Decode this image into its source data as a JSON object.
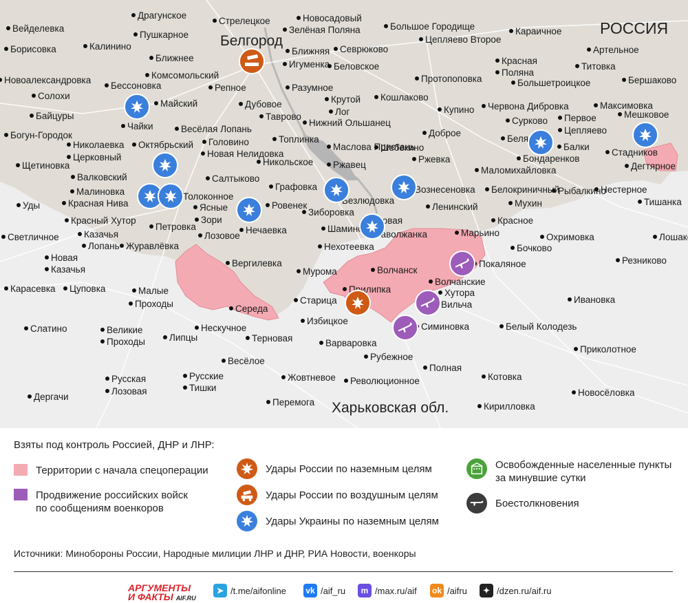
{
  "map": {
    "region_russia": "РОССИЯ",
    "region_kharkiv": "Харьковская обл.",
    "city_main": "Белгород",
    "towns": [
      {
        "n": "Драгунское"
      },
      {
        "n": "Стрелецкое"
      },
      {
        "n": "Новосадовый"
      },
      {
        "n": "Вейделевка"
      },
      {
        "n": "Пушкарное"
      },
      {
        "n": "Зелёная Поляна"
      },
      {
        "n": "Большое Городище"
      },
      {
        "n": "Караичное"
      },
      {
        "n": "Борисовка"
      },
      {
        "n": "Калинино"
      },
      {
        "n": "Цепляево Второе"
      },
      {
        "n": "Ближняя"
      },
      {
        "n": "Севрюково"
      },
      {
        "n": "Артельное"
      },
      {
        "n": "Ближнее"
      },
      {
        "n": "Игуменка"
      },
      {
        "n": "Беловское"
      },
      {
        "n": "Красная"
      },
      {
        "n": "Поляна"
      },
      {
        "n": "Титовка"
      },
      {
        "n": "Новоалександровка"
      },
      {
        "n": "Комсомольский"
      },
      {
        "n": "Протопоповка"
      },
      {
        "n": "Бершаково"
      },
      {
        "n": "Бессоновка"
      },
      {
        "n": "Разумное"
      },
      {
        "n": "Большетроицкое"
      },
      {
        "n": "Солохи"
      },
      {
        "n": "Репное"
      },
      {
        "n": "Крутой"
      },
      {
        "n": "Кошлаково"
      },
      {
        "n": "Максимовка"
      },
      {
        "n": "Майский"
      },
      {
        "n": "Дубовое"
      },
      {
        "n": "Лог"
      },
      {
        "n": "Купино"
      },
      {
        "n": "Червона Дибровка"
      },
      {
        "n": "Мешковое"
      },
      {
        "n": "Байцуры"
      },
      {
        "n": "Таврово"
      },
      {
        "n": "Нижний Ольшанец"
      },
      {
        "n": "Сурково"
      },
      {
        "n": "Первое"
      },
      {
        "n": "Цепляево"
      },
      {
        "n": "Чайки"
      },
      {
        "n": "Весёлая Лопань"
      },
      {
        "n": "Доброе"
      },
      {
        "n": "Богун-Городок"
      },
      {
        "n": "Топлинка"
      },
      {
        "n": "Белянка"
      },
      {
        "n": "Балки"
      },
      {
        "n": "Николаевка"
      },
      {
        "n": "Октябрьский"
      },
      {
        "n": "Головино"
      },
      {
        "n": "Маслова Пристань"
      },
      {
        "n": "Шебекино"
      },
      {
        "n": "Стадников"
      },
      {
        "n": "Церковный"
      },
      {
        "n": "Новая Нелидовка"
      },
      {
        "n": "Ржевка"
      },
      {
        "n": "Бондаренков"
      },
      {
        "n": "Дегтярное"
      },
      {
        "n": "Щетиновка"
      },
      {
        "n": "Никольское"
      },
      {
        "n": "Ржавец"
      },
      {
        "n": "Маломихайловка"
      },
      {
        "n": "Валковский"
      },
      {
        "n": "Салтыково"
      },
      {
        "n": "Графовка"
      },
      {
        "n": "Вознесеновка"
      },
      {
        "n": "Белокриничный"
      },
      {
        "n": "Нестерное"
      },
      {
        "n": "Малиновка"
      },
      {
        "n": "Толоконное"
      },
      {
        "n": "Безлюдовка"
      },
      {
        "n": "Рыбалкино"
      },
      {
        "n": "Уды"
      },
      {
        "n": "Красная Нива"
      },
      {
        "n": "Ясные"
      },
      {
        "n": "Ровенек"
      },
      {
        "n": "Ленинский"
      },
      {
        "n": "Мухин"
      },
      {
        "n": "Тишанка"
      },
      {
        "n": "Зори"
      },
      {
        "n": "Зиборовка"
      },
      {
        "n": "Красный Хутор"
      },
      {
        "n": "Петровка"
      },
      {
        "n": "Нечаевка"
      },
      {
        "n": "Шамино"
      },
      {
        "n": "Новая"
      },
      {
        "n": "Таволжанка"
      },
      {
        "n": "Красное"
      },
      {
        "n": "Светличное"
      },
      {
        "n": "Казачья"
      },
      {
        "n": "Лозовое"
      },
      {
        "n": "Марьино"
      },
      {
        "n": "Охримовка"
      },
      {
        "n": "Лошаково"
      },
      {
        "n": "Лопань"
      },
      {
        "n": "Журавлёвка"
      },
      {
        "n": "Нехотеевка"
      },
      {
        "n": "Бочково"
      },
      {
        "n": "Резниково"
      },
      {
        "n": "Новая"
      },
      {
        "n": "Казачья"
      },
      {
        "n": "Вергилевка"
      },
      {
        "n": "Мурома"
      },
      {
        "n": "Волчанск"
      },
      {
        "n": "Покаляное"
      },
      {
        "n": "Карасевка"
      },
      {
        "n": "Цуповка"
      },
      {
        "n": "Прилипка"
      },
      {
        "n": "Волчанские"
      },
      {
        "n": "Хутора"
      },
      {
        "n": "Малые"
      },
      {
        "n": "Проходы"
      },
      {
        "n": "Ивановка"
      },
      {
        "n": "Середа"
      },
      {
        "n": "Старица"
      },
      {
        "n": "Вильча"
      },
      {
        "n": "Слатино"
      },
      {
        "n": "Великие"
      },
      {
        "n": "Проходы"
      },
      {
        "n": "Нескучное"
      },
      {
        "n": "Избицкое"
      },
      {
        "n": "Симиновка"
      },
      {
        "n": "Белый Колодезь"
      },
      {
        "n": "Липцы"
      },
      {
        "n": "Терновая"
      },
      {
        "n": "Варваровка"
      },
      {
        "n": "Приколотное"
      },
      {
        "n": "Весёлое"
      },
      {
        "n": "Рубежное"
      },
      {
        "n": "Русская"
      },
      {
        "n": "Лозовая"
      },
      {
        "n": "Русские"
      },
      {
        "n": "Тишки"
      },
      {
        "n": "Полная"
      },
      {
        "n": "Жовтневое"
      },
      {
        "n": "Революционное"
      },
      {
        "n": "Котовка"
      },
      {
        "n": "Дергачи"
      },
      {
        "n": "Новосёловка"
      },
      {
        "n": "Перемога"
      },
      {
        "n": "Кирилловка"
      }
    ]
  },
  "legend": {
    "title": "Взяты под контроль Россией, ДНР и ЛНР:",
    "territories": "Территории с начала спецоперации",
    "advance": "Продвижение российских войск\nпо сообщениям военкоров",
    "ru_ground": "Удары России по наземным целям",
    "ru_air": "Удары России по воздушным целям",
    "ua_ground": "Удары Украины по наземным целям",
    "liberated": "Освобожденные населенные пункты\nза минувшие сутки",
    "clashes": "Боестолкновения",
    "sources": "Источники: Минобороны России, Народные милиции ЛНР и ДНР, РИА Новости, военкоры",
    "colors": {
      "territory": "#f4aab3",
      "advance": "#9d5cba",
      "ru_strike": "#cf5a15",
      "ua_strike": "#3a7fdc",
      "liberated": "#4aa33a",
      "clash": "#3c3c3c"
    }
  },
  "footer": {
    "logo_line1": "АРГУМЕНТЫ",
    "logo_line2": "И ФАКТЫ",
    "logo_domain": "AIF.RU",
    "telegram": "/t.me/aifonline",
    "vk": "/aif_ru",
    "max": "/max.ru/aif",
    "ok": "/aifru",
    "dzen": "/dzen.ru/aif.ru"
  }
}
